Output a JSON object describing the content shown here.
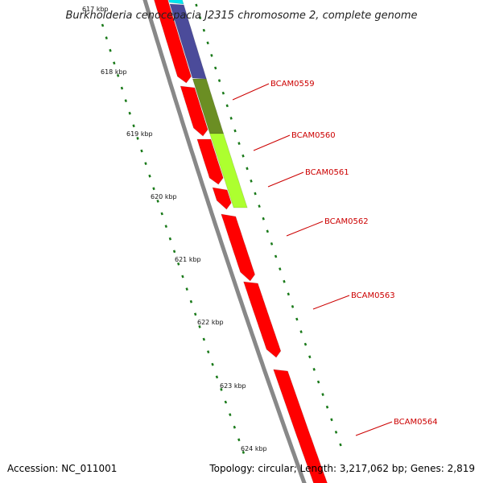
{
  "title": "Burkholderia cenocepacia J2315 chromosome 2, complete genome",
  "footer": {
    "accession": "Accession: NC_011001",
    "summary": "Topology: circular; Length: 3,217,062 bp; Genes: 2,819"
  },
  "kbp_labels": [
    "617 kbp",
    "618 kbp",
    "619 kbp",
    "620 kbp",
    "621 kbp",
    "622 kbp",
    "623 kbp",
    "624 kbp"
  ],
  "genes": [
    {
      "name": "BCAM0559",
      "color": "#4B4B9A",
      "strand": "plus"
    },
    {
      "name": "BCAM0560",
      "color": "#6B8E23",
      "strand": "plus"
    },
    {
      "name": "BCAM0561",
      "color": "#ADFF2F",
      "strand": "plus"
    },
    {
      "name": "BCAM0562",
      "color": "#FF0000",
      "strand": "minus"
    },
    {
      "name": "BCAM0563",
      "color": "#FF0000",
      "strand": "minus"
    },
    {
      "name": "BCAM0564",
      "color": "#FF0000",
      "strand": "minus"
    }
  ],
  "colors": {
    "backbone": "#888888",
    "tick": "#1a7a1a",
    "label": "#cc0000",
    "cyan_feature": "#00E5EE",
    "minus_feature": "#FF0000"
  }
}
